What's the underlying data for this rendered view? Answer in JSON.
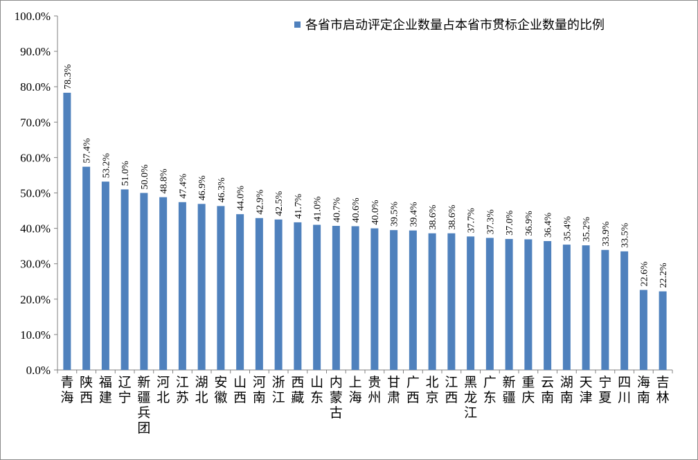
{
  "chart_data": {
    "type": "bar",
    "title": "",
    "xlabel": "",
    "ylabel": "",
    "ylim": [
      0,
      100
    ],
    "yticks": [
      "0.0%",
      "10.0%",
      "20.0%",
      "30.0%",
      "40.0%",
      "50.0%",
      "60.0%",
      "70.0%",
      "80.0%",
      "90.0%",
      "100.0%"
    ],
    "grid": false,
    "legend_position": "top-right",
    "bar_color": "#4f81bd",
    "series": [
      {
        "name": "各省市启动评定企业数量占本省市贯标企业数量的比例",
        "values": [
          78.3,
          57.4,
          53.2,
          51.0,
          50.0,
          48.8,
          47.4,
          46.9,
          46.3,
          44.0,
          42.9,
          42.5,
          41.7,
          41.0,
          40.7,
          40.6,
          40.0,
          39.5,
          39.4,
          38.6,
          38.6,
          37.7,
          37.3,
          37.0,
          36.9,
          36.4,
          35.4,
          35.2,
          33.9,
          33.5,
          22.6,
          22.2
        ],
        "labels": [
          "78.3%",
          "57.4%",
          "53.2%",
          "51.0%",
          "50.0%",
          "48.8%",
          "47.4%",
          "46.9%",
          "46.3%",
          "44.0%",
          "42.9%",
          "42.5%",
          "41.7%",
          "41.0%",
          "40.7%",
          "40.6%",
          "40.0%",
          "39.5%",
          "39.4%",
          "38.6%",
          "38.6%",
          "37.7%",
          "37.3%",
          "37.0%",
          "36.9%",
          "36.4%",
          "35.4%",
          "35.2%",
          "33.9%",
          "33.5%",
          "22.6%",
          "22.2%"
        ]
      }
    ],
    "categories": [
      "青海",
      "陕西",
      "福建",
      "辽宁",
      "新疆兵团",
      "河北",
      "江苏",
      "湖北",
      "安徽",
      "山西",
      "河南",
      "浙江",
      "西藏",
      "山东",
      "内蒙古",
      "上海",
      "贵州",
      "甘肃",
      "广西",
      "北京",
      "江西",
      "黑龙江",
      "广东",
      "新疆",
      "重庆",
      "云南",
      "湖南",
      "天津",
      "宁夏",
      "四川",
      "海南",
      "吉林"
    ]
  }
}
